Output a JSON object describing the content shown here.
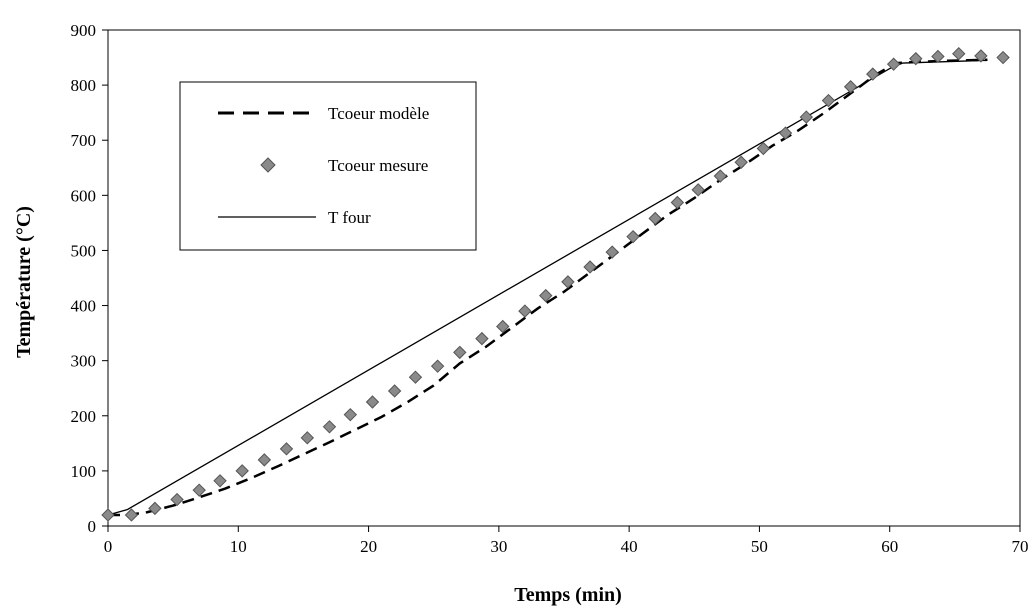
{
  "chart_data": {
    "type": "line",
    "title": "",
    "xlabel": "Temps (min)",
    "ylabel": "Température (°C)",
    "xlim": [
      0,
      70
    ],
    "ylim": [
      0,
      900
    ],
    "xticks": [
      "0",
      "10",
      "20",
      "30",
      "40",
      "50",
      "60",
      "70"
    ],
    "yticks": [
      "0",
      "100",
      "200",
      "300",
      "400",
      "500",
      "600",
      "700",
      "800",
      "900"
    ],
    "grid": false,
    "legend_position": "top-left",
    "series": [
      {
        "name": "Tcoeur modèle",
        "style": "dashed",
        "color": "#000000",
        "x": [
          0,
          1.5,
          3,
          5,
          7,
          9,
          11,
          13,
          15,
          17,
          19,
          21,
          23,
          25,
          27,
          29,
          31,
          33,
          35,
          37,
          39,
          41,
          43,
          45,
          47,
          49,
          51,
          53,
          55,
          57,
          59,
          60.5,
          62,
          64,
          66,
          67.5
        ],
        "y": [
          20,
          20,
          25,
          37,
          52,
          68,
          87,
          108,
          130,
          152,
          175,
          198,
          225,
          255,
          295,
          325,
          360,
          395,
          425,
          460,
          495,
          530,
          565,
          595,
          628,
          658,
          690,
          718,
          750,
          785,
          820,
          840,
          842,
          844,
          845,
          846
        ]
      },
      {
        "name": "Tcoeur mesure",
        "style": "markers",
        "color": "#8a8a8a",
        "x": [
          0,
          1.8,
          3.6,
          5.3,
          7.0,
          8.6,
          10.3,
          12.0,
          13.7,
          15.3,
          17.0,
          18.6,
          20.3,
          22.0,
          23.6,
          25.3,
          27.0,
          28.7,
          30.3,
          32.0,
          33.6,
          35.3,
          37.0,
          38.7,
          40.3,
          42.0,
          43.7,
          45.3,
          47.0,
          48.6,
          50.3,
          52.0,
          53.6,
          55.3,
          57.0,
          58.7,
          60.3,
          62.0,
          63.7,
          65.3,
          67.0,
          68.7
        ],
        "y": [
          20,
          20,
          32,
          48,
          65,
          82,
          100,
          120,
          140,
          160,
          180,
          202,
          225,
          245,
          270,
          290,
          315,
          340,
          362,
          390,
          418,
          443,
          470,
          497,
          525,
          558,
          587,
          610,
          635,
          660,
          685,
          713,
          742,
          772,
          797,
          820,
          838,
          848,
          852,
          857,
          853,
          850
        ]
      },
      {
        "name": "T four",
        "style": "solid",
        "color": "#000000",
        "x": [
          0,
          1.5,
          60,
          61,
          67.5
        ],
        "y": [
          20,
          30,
          830,
          840,
          845
        ]
      }
    ]
  }
}
